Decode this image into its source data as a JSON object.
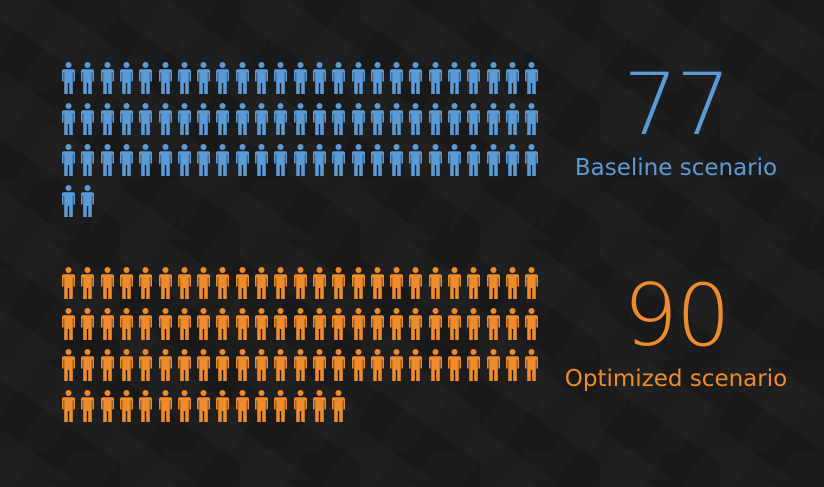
{
  "chart_data": {
    "type": "pictograph",
    "series": [
      {
        "name": "Baseline scenario",
        "value": 77,
        "color": "#5b9bd5",
        "icon": "person-icon"
      },
      {
        "name": "Optimized scenario",
        "value": 90,
        "color": "#ed8b2d",
        "icon": "person-icon"
      }
    ],
    "icons_per_row": 25
  }
}
